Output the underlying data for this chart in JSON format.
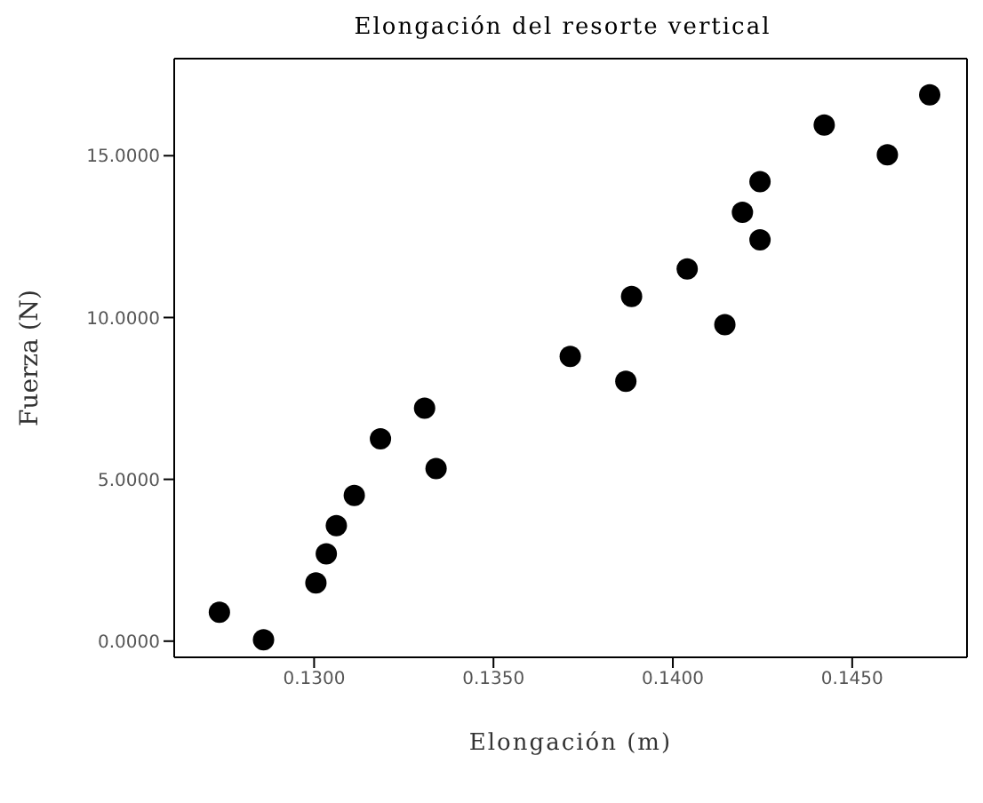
{
  "chart_data": {
    "type": "scatter",
    "title": "Elongación del resorte vertical",
    "xlabel": "Elongación (m)",
    "ylabel": "Fuerza (N)",
    "x": [
      0.12736,
      0.12859,
      0.13005,
      0.13034,
      0.13062,
      0.13112,
      0.13185,
      0.13308,
      0.1334,
      0.13714,
      0.13869,
      0.13885,
      0.1404,
      0.14145,
      0.14194,
      0.14243,
      0.14243,
      0.14422,
      0.14598,
      0.14716
    ],
    "values": [
      0.89,
      0.04,
      1.8,
      2.7,
      3.57,
      4.5,
      6.25,
      7.2,
      5.33,
      8.8,
      8.03,
      10.65,
      11.5,
      9.78,
      13.25,
      14.2,
      12.4,
      15.95,
      15.03,
      16.88
    ],
    "color": "#000000",
    "marker": "circle",
    "grid": false,
    "legend": false,
    "xlim": [
      0.1261,
      0.1482
    ],
    "ylim": [
      -0.5,
      18
    ],
    "xticks": [
      {
        "value": 0.13,
        "label": "0.1300"
      },
      {
        "value": 0.135,
        "label": "0.1350"
      },
      {
        "value": 0.14,
        "label": "0.1400"
      },
      {
        "value": 0.145,
        "label": "0.1450"
      }
    ],
    "yticks": [
      {
        "value": 0,
        "label": "0.0000"
      },
      {
        "value": 5,
        "label": "5.0000"
      },
      {
        "value": 10,
        "label": "10.0000"
      },
      {
        "value": 15,
        "label": "15.0000"
      }
    ]
  }
}
